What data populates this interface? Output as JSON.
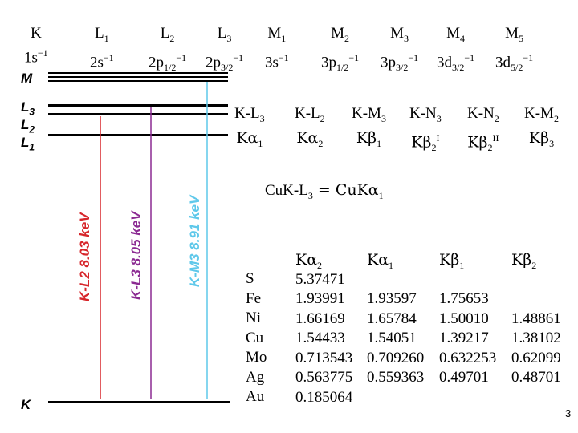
{
  "shells": [
    {
      "top": "K",
      "top_sub": "",
      "bottom": "1s",
      "bottom_sub": "",
      "bottom_sup": "−1"
    },
    {
      "top": "L",
      "top_sub": "1",
      "bottom": "2s",
      "bottom_sub": "",
      "bottom_sup": "−1"
    },
    {
      "top": "L",
      "top_sub": "2",
      "bottom": "2p",
      "bottom_sub": "1/2",
      "bottom_sup": "−1"
    },
    {
      "top": "L",
      "top_sub": "3",
      "bottom": "2p",
      "bottom_sub": "3/2",
      "bottom_sup": "−1"
    },
    {
      "top": "M",
      "top_sub": "1",
      "bottom": "3s",
      "bottom_sub": "",
      "bottom_sup": "−1"
    },
    {
      "top": "M",
      "top_sub": "2",
      "bottom": "3p",
      "bottom_sub": "1/2",
      "bottom_sup": "−1"
    },
    {
      "top": "M",
      "top_sub": "3",
      "bottom": "3p",
      "bottom_sub": "3/2",
      "bottom_sup": "−1"
    },
    {
      "top": "M",
      "top_sub": "4",
      "bottom": "3d",
      "bottom_sub": "3/2",
      "bottom_sup": "−1"
    },
    {
      "top": "M",
      "top_sub": "5",
      "bottom": "3d",
      "bottom_sub": "5/2",
      "bottom_sup": "−1"
    }
  ],
  "levels": {
    "m": "M",
    "l3": "L",
    "l3_sub": "3",
    "l2": "L",
    "l2_sub": "2",
    "l1": "L",
    "l1_sub": "1",
    "k": "K"
  },
  "transitions": [
    {
      "name": "K-L",
      "name_sub": "3",
      "line": "Kα",
      "line_sub": "1",
      "line_sup": ""
    },
    {
      "name": "K-L",
      "name_sub": "2",
      "line": "Kα",
      "line_sub": "2",
      "line_sup": ""
    },
    {
      "name": "K-M",
      "name_sub": "3",
      "line": "Kβ",
      "line_sub": "1",
      "line_sup": ""
    },
    {
      "name": "K-N",
      "name_sub": "3",
      "line": "Kβ",
      "line_sub": "2",
      "line_sup": "I"
    },
    {
      "name": "K-N",
      "name_sub": "2",
      "line": "Kβ",
      "line_sub": "2",
      "line_sup": "II"
    },
    {
      "name": "K-M",
      "name_sub": "2",
      "line": "Kβ",
      "line_sub": "3",
      "line_sup": ""
    }
  ],
  "equation": {
    "left": "CuK-L",
    "left_sub": "3",
    "mid": " = CuKα",
    "right_sub": "1"
  },
  "arrows": [
    {
      "label": "K-L2 8.03 keV",
      "color": "#d7262b"
    },
    {
      "label": "K-L3 8.05 keV",
      "color": "#8b2a92"
    },
    {
      "label": "K-M3 8.91 keV",
      "color": "#5ec8ea"
    }
  ],
  "table": {
    "headers": [
      {
        "text": "Kα",
        "sub": "2"
      },
      {
        "text": "Kα",
        "sub": "1"
      },
      {
        "text": "Kβ",
        "sub": "1"
      },
      {
        "text": "Kβ",
        "sub": "2"
      }
    ],
    "rows": [
      {
        "element": "S",
        "values": [
          "5.37471",
          "",
          "",
          ""
        ]
      },
      {
        "element": "Fe",
        "values": [
          "1.93991",
          "1.93597",
          "1.75653",
          ""
        ]
      },
      {
        "element": "Ni",
        "values": [
          "1.66169",
          "1.65784",
          "1.50010",
          "1.48861"
        ]
      },
      {
        "element": "Cu",
        "values": [
          "1.54433",
          "1.54051",
          "1.39217",
          "1.38102"
        ]
      },
      {
        "element": "Mo",
        "values": [
          "0.713543",
          "0.709260",
          "0.632253",
          "0.62099"
        ]
      },
      {
        "element": "Ag",
        "values": [
          "0.563775",
          "0.559363",
          "0.49701",
          "0.48701"
        ]
      },
      {
        "element": "Au",
        "values": [
          "0.185064",
          "",
          "",
          ""
        ]
      }
    ]
  },
  "page_number": "3"
}
